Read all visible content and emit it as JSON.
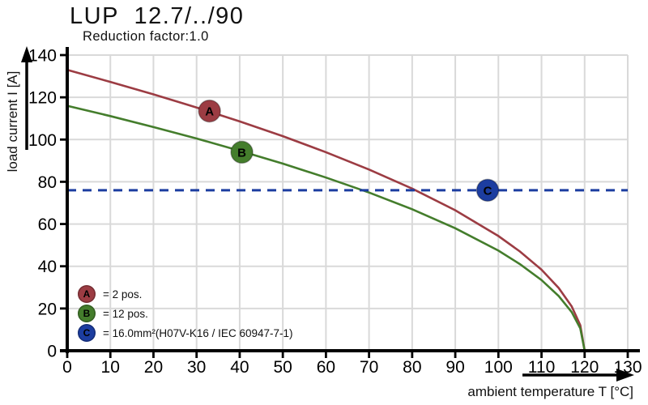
{
  "title": "LUP  12.7/../90",
  "subtitle": "Reduction factor:1.0",
  "axes": {
    "y_label": "load current I [A]",
    "x_label": "ambient temperature T [°C]"
  },
  "legend": {
    "items": [
      {
        "letter": "A",
        "text": "= 2 pos.",
        "color": "#9c3c43"
      },
      {
        "letter": "B",
        "text": "= 12 pos.",
        "color": "#447d2c"
      },
      {
        "letter": "C",
        "text": "= 16.0mm²(H07V-K16 / IEC 60947-7-1)",
        "color": "#1c3da0"
      }
    ]
  },
  "colors": {
    "curve_a": "#9c3c43",
    "curve_b": "#447d2c",
    "dashed_c": "#1c3da0",
    "grid": "#d9d9d9",
    "axis": "#000000"
  },
  "chart_data": {
    "type": "line",
    "title": "LUP 12.7/../90",
    "subtitle": "Reduction factor:1.0",
    "xlabel": "ambient temperature T [°C]",
    "ylabel": "load current I [A]",
    "xlim": [
      0,
      130
    ],
    "ylim": [
      0,
      140
    ],
    "x_ticks": [
      0,
      10,
      20,
      30,
      40,
      50,
      60,
      70,
      80,
      90,
      100,
      110,
      120,
      130
    ],
    "y_ticks": [
      0,
      20,
      40,
      60,
      80,
      100,
      120,
      140
    ],
    "grid": true,
    "series": [
      {
        "name": "A",
        "label": "2 pos.",
        "color": "#9c3c43",
        "style": "solid",
        "x": [
          0,
          10,
          20,
          30,
          40,
          50,
          60,
          70,
          80,
          90,
          100,
          105,
          110,
          114,
          117,
          119,
          120
        ],
        "y": [
          133,
          127.3,
          121.4,
          115.2,
          108.6,
          101.6,
          94.0,
          85.8,
          76.8,
          66.5,
          54.3,
          47.0,
          38.4,
          29.7,
          21.0,
          12.1,
          0
        ]
      },
      {
        "name": "B",
        "label": "12 pos.",
        "color": "#447d2c",
        "style": "solid",
        "x": [
          0,
          10,
          20,
          30,
          40,
          50,
          60,
          70,
          80,
          90,
          100,
          105,
          110,
          114,
          117,
          119,
          120
        ],
        "y": [
          116,
          111.1,
          105.9,
          100.5,
          94.7,
          88.6,
          82.0,
          74.9,
          67.0,
          58.0,
          47.4,
          41.0,
          33.5,
          25.9,
          18.3,
          10.6,
          0
        ]
      },
      {
        "name": "C",
        "label": "16.0mm²(H07V-K16 / IEC 60947-7-1)",
        "color": "#1c3da0",
        "style": "dashed",
        "x": [
          0,
          130
        ],
        "y": [
          76,
          76
        ]
      }
    ],
    "markers": [
      {
        "letter": "A",
        "x": 33,
        "y": 113.5,
        "color": "#9c3c43"
      },
      {
        "letter": "B",
        "x": 40.5,
        "y": 94,
        "color": "#447d2c"
      },
      {
        "letter": "C",
        "x": 97.5,
        "y": 76,
        "color": "#1c3da0"
      }
    ],
    "legend_position": "lower-left"
  }
}
